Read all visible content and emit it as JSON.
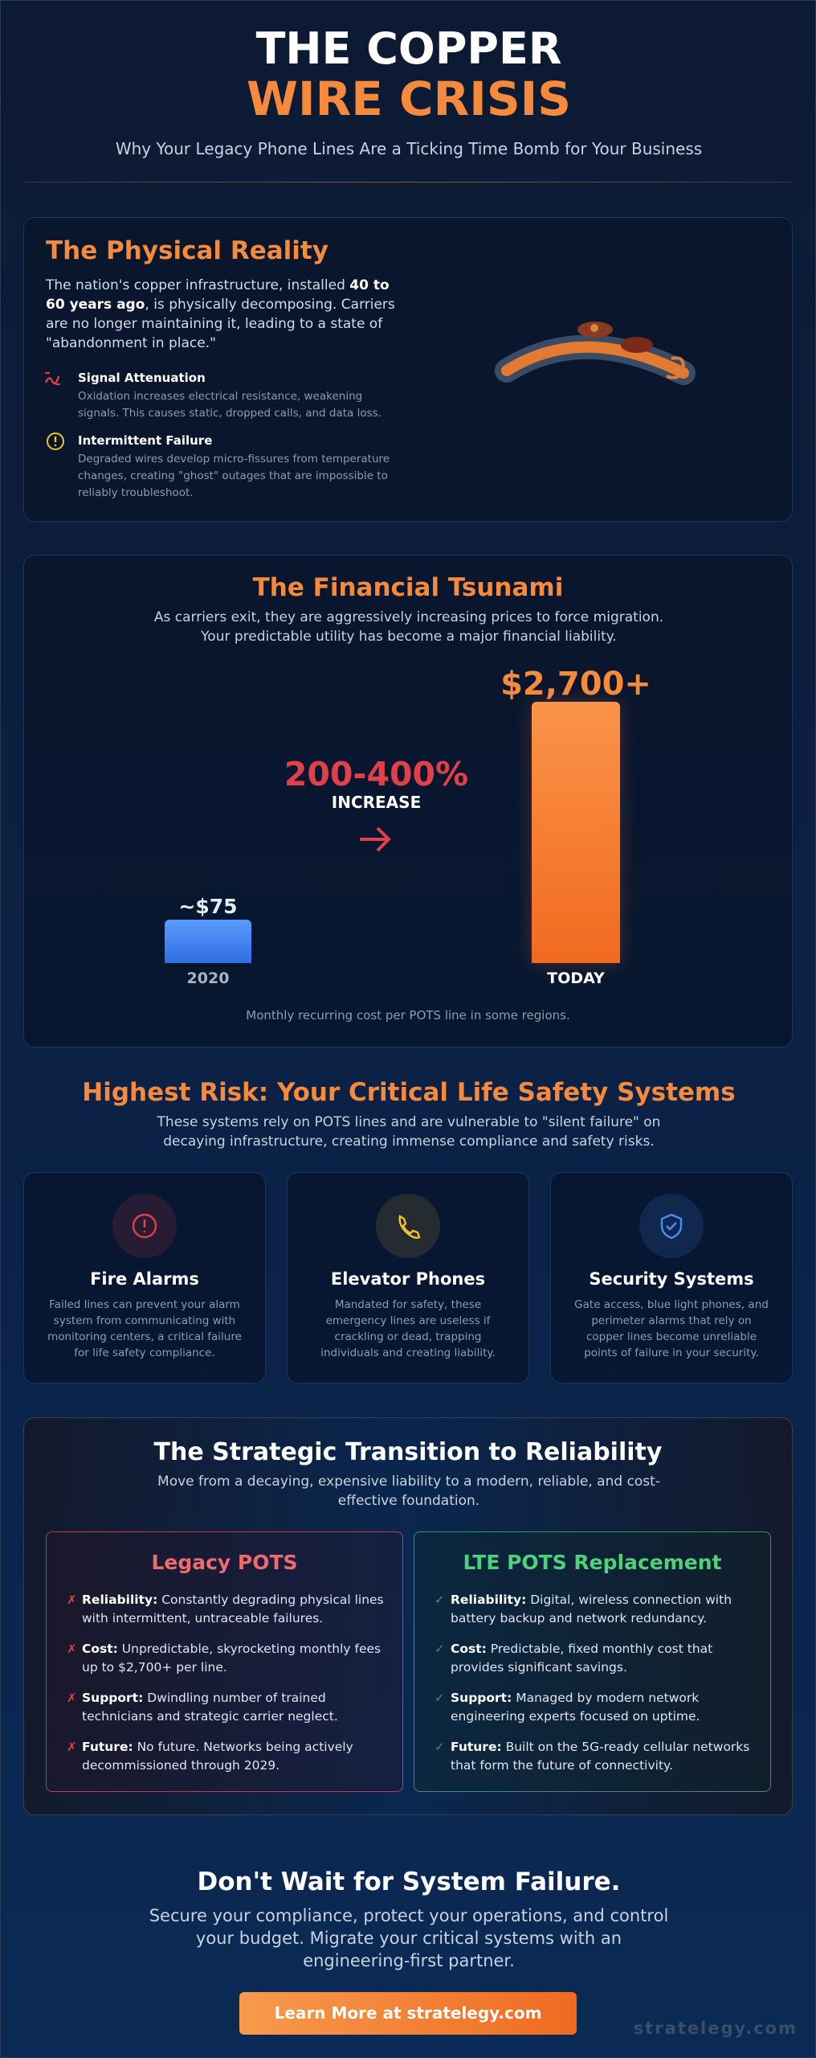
{
  "header": {
    "title_line1": "THE COPPER",
    "title_line2": "WIRE CRISIS",
    "subtitle": "Why Your Legacy Phone Lines Are a Ticking Time Bomb for Your Business"
  },
  "physical": {
    "title": "The Physical Reality",
    "intro_before": "The nation's copper infrastructure, installed ",
    "intro_bold": "40 to 60 years ago",
    "intro_after": ", is physically decomposing. Carriers are no longer maintaining it, leading to a state of \"abandonment in place.\"",
    "items": [
      {
        "title": "Signal Attenuation",
        "text": "Oxidation increases electrical resistance, weakening signals. This causes static, dropped calls, and data loss."
      },
      {
        "title": "Intermittent Failure",
        "text": "Degraded wires develop micro-fissures from temperature changes, creating \"ghost\" outages that are impossible to reliably troubleshoot."
      }
    ]
  },
  "financial": {
    "title": "The Financial Tsunami",
    "subtitle": "As carriers exit, they are aggressively increasing prices to force migration. Your predictable utility has become a major financial liability.",
    "increase": "200-400%",
    "increase_label": "INCREASE",
    "before_value": "~$75",
    "before_label": "2020",
    "after_value": "$2,700+",
    "after_label": "TODAY",
    "note": "Monthly recurring cost per POTS line in some regions."
  },
  "risk": {
    "title": "Highest Risk: Your Critical Life Safety Systems",
    "subtitle": "These systems rely on POTS lines and are vulnerable to \"silent failure\" on decaying infrastructure, creating immense compliance and safety risks.",
    "cards": [
      {
        "title": "Fire Alarms",
        "text": "Failed lines can prevent your alarm system from communicating with monitoring centers, a critical failure for life safety compliance."
      },
      {
        "title": "Elevator Phones",
        "text": "Mandated for safety, these emergency lines are useless if crackling or dead, trapping individuals and creating liability."
      },
      {
        "title": "Security Systems",
        "text": "Gate access, blue light phones, and perimeter alarms that rely on copper lines become unreliable points of failure in your security."
      }
    ]
  },
  "transition": {
    "title": "The Strategic Transition to Reliability",
    "subtitle": "Move from a decaying, expensive liability to a modern, reliable, and cost-effective foundation.",
    "legacy": {
      "title": "Legacy POTS",
      "items": [
        {
          "label": "Reliability:",
          "text": " Constantly degrading physical lines with intermittent, untraceable failures."
        },
        {
          "label": "Cost:",
          "text": " Unpredictable, skyrocketing monthly fees up to $2,700+ per line."
        },
        {
          "label": "Support:",
          "text": " Dwindling number of trained technicians and strategic carrier neglect."
        },
        {
          "label": "Future:",
          "text": " No future. Networks being actively decommissioned through 2029."
        }
      ]
    },
    "lte": {
      "title": "LTE POTS Replacement",
      "items": [
        {
          "label": "Reliability:",
          "text": " Digital, wireless connection with battery backup and network redundancy."
        },
        {
          "label": "Cost:",
          "text": " Predictable, fixed monthly cost that provides significant savings."
        },
        {
          "label": "Support:",
          "text": " Managed by modern network engineering experts focused on uptime."
        },
        {
          "label": "Future:",
          "text": " Built on the 5G-ready cellular networks that form the future of connectivity."
        }
      ]
    }
  },
  "cta": {
    "title": "Don't Wait for System Failure.",
    "text": "Secure your compliance, protect your operations, and control your budget. Migrate your critical systems with an engineering-first partner.",
    "button": "Learn More at stratelegy.com"
  },
  "watermark": "stratelegy.com"
}
